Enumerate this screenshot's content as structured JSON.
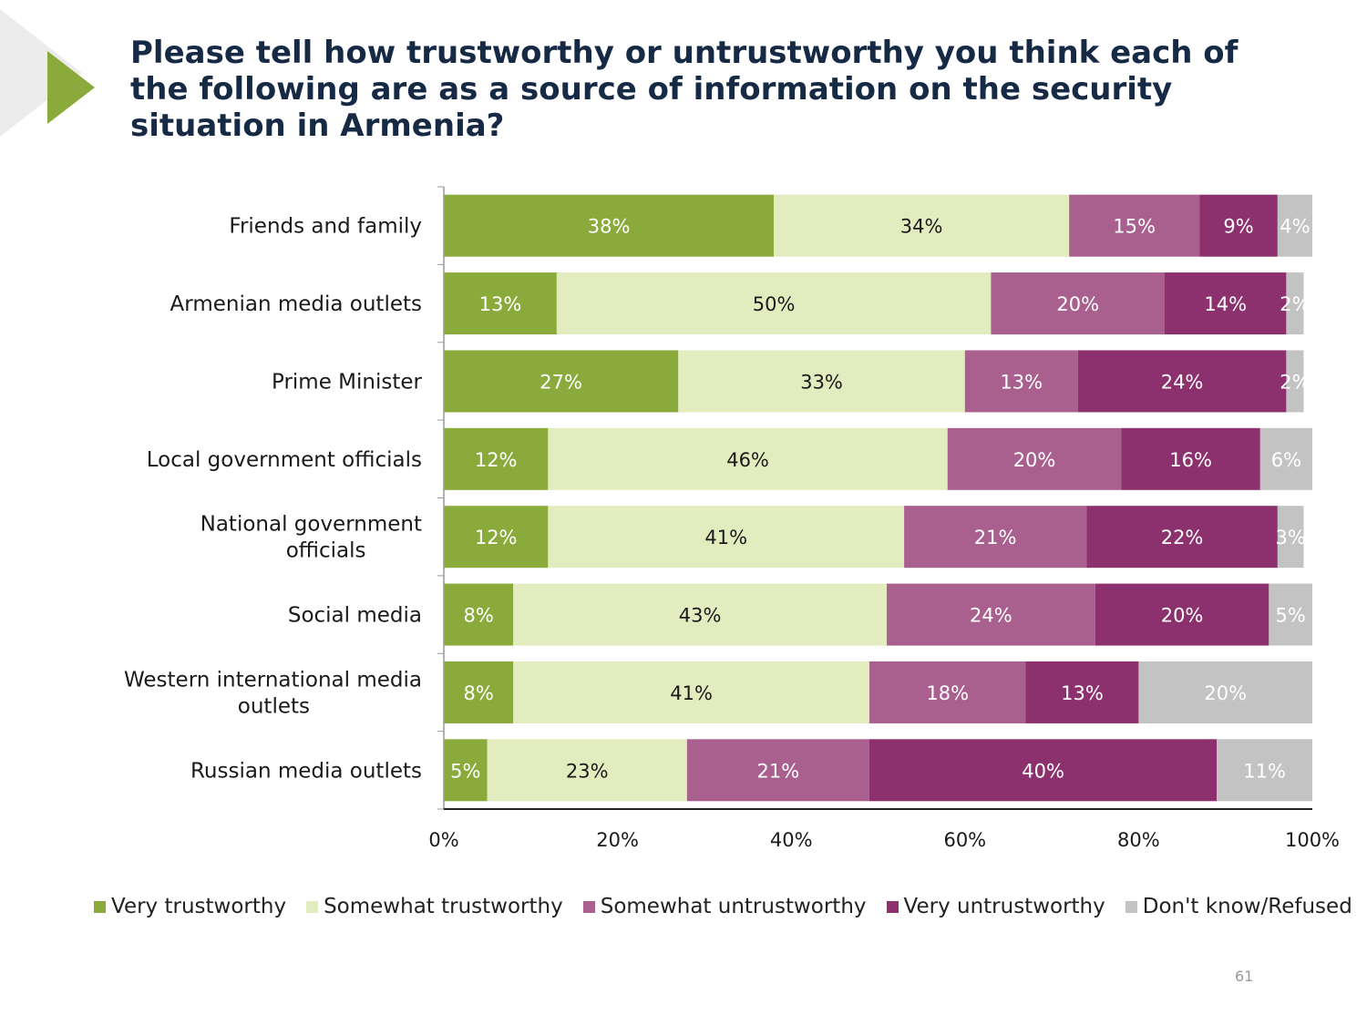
{
  "title": "Please tell how trustworthy or untrustworthy you think each of the following are as a source of information on the security situation in Armenia?",
  "page_number": "61",
  "colors": {
    "very_trustworthy": "#8aab3c",
    "somewhat_trustworthy": "#e3ecbf",
    "somewhat_untrustworthy": "#a9608f",
    "very_untrustworthy": "#8d316e",
    "dont_know": "#c3c3c3",
    "accent": "#8aab3c",
    "title": "#172a45"
  },
  "chart_data": {
    "type": "bar",
    "orientation": "horizontal",
    "stacked": true,
    "title": "",
    "xlabel": "",
    "ylabel": "",
    "xlim": [
      0,
      100
    ],
    "x_ticks": [
      "0%",
      "20%",
      "40%",
      "60%",
      "80%",
      "100%"
    ],
    "grid": false,
    "legend_position": "bottom",
    "categories": [
      "Friends and family",
      "Armenian media outlets",
      "Prime Minister",
      "Local government officials",
      "National government officials",
      "Social media",
      "Western international media outlets",
      "Russian media outlets"
    ],
    "series": [
      {
        "name": "Very trustworthy",
        "color": "#8aab3c",
        "label_color": "#ffffff",
        "values": [
          38,
          13,
          27,
          12,
          12,
          8,
          8,
          5
        ],
        "labels": [
          "38%",
          "13%",
          "27%",
          "12%",
          "12%",
          "8%",
          "8%",
          "5%"
        ]
      },
      {
        "name": "Somewhat trustworthy",
        "color": "#e3ecbf",
        "label_color": "#1a1a1a",
        "values": [
          34,
          50,
          33,
          46,
          41,
          43,
          41,
          23
        ],
        "labels": [
          "34%",
          "50%",
          "33%",
          "46%",
          "41%",
          "43%",
          "41%",
          "23%"
        ]
      },
      {
        "name": "Somewhat untrustworthy",
        "color": "#a9608f",
        "label_color": "#ffffff",
        "values": [
          15,
          20,
          13,
          20,
          21,
          24,
          18,
          21
        ],
        "labels": [
          "15%",
          "20%",
          "13%",
          "20%",
          "21%",
          "24%",
          "18%",
          "21%"
        ]
      },
      {
        "name": "Very untrustworthy",
        "color": "#8d316e",
        "label_color": "#ffffff",
        "values": [
          9,
          14,
          24,
          16,
          22,
          20,
          13,
          40
        ],
        "labels": [
          "9%",
          "14%",
          "24%",
          "16%",
          "22%",
          "20%",
          "13%",
          "40%"
        ]
      },
      {
        "name": "Don't know/Refused",
        "color": "#c3c3c3",
        "label_color": "#ffffff",
        "values": [
          4,
          2,
          2,
          6,
          3,
          5,
          20,
          11
        ],
        "labels": [
          "4%",
          "2%",
          "2%",
          "6%",
          "3%",
          "5%",
          "20%",
          "11%"
        ]
      }
    ]
  }
}
